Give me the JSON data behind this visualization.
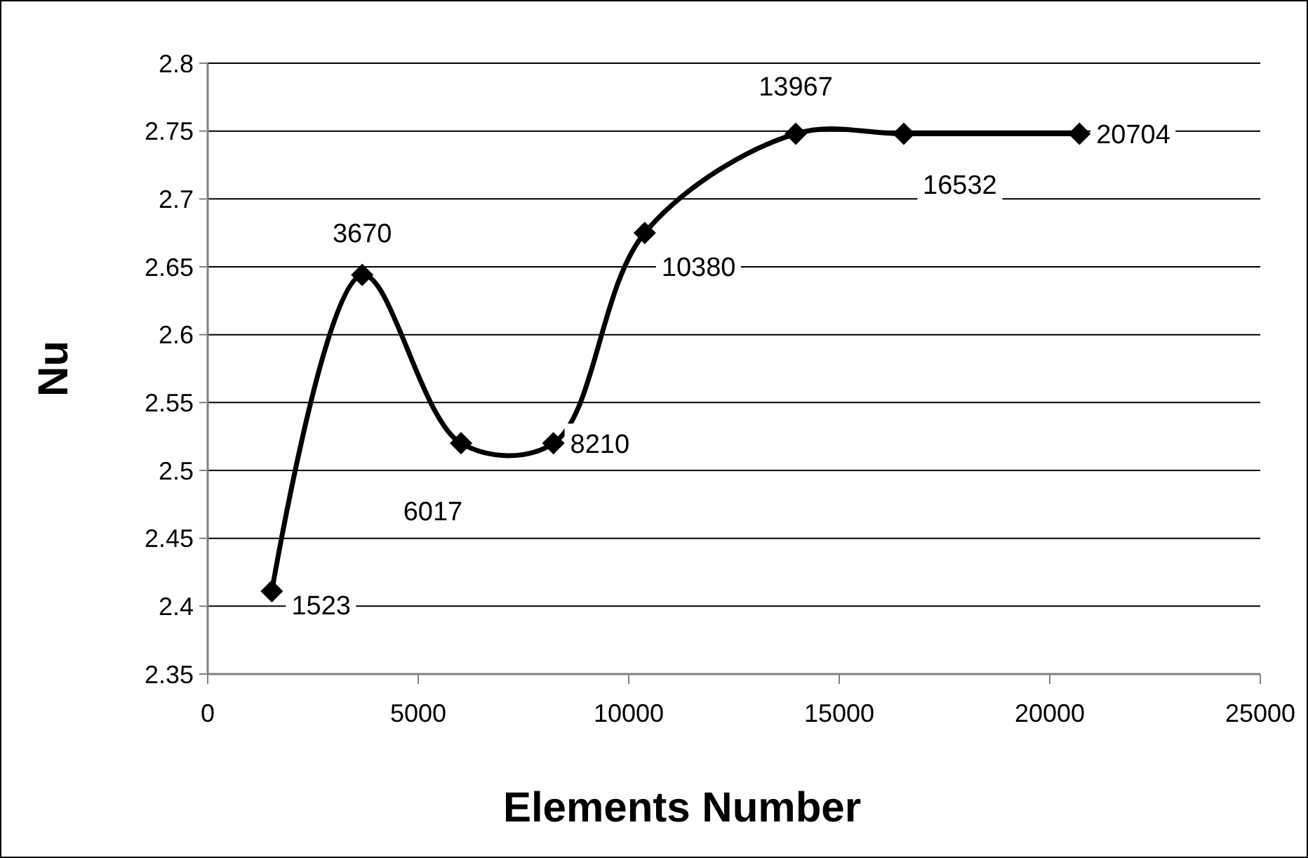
{
  "chart_data": {
    "type": "line",
    "xlabel": "Elements Number",
    "ylabel": "Nu",
    "x": [
      1523,
      3670,
      6017,
      8210,
      10380,
      13967,
      16532,
      20704
    ],
    "series": [
      {
        "color": "#000000",
        "values": [
          2.411,
          2.644,
          2.52,
          2.52,
          2.675,
          2.748,
          2.748,
          2.748
        ]
      }
    ],
    "value_labels": [
      "1523",
      "3670",
      "6017",
      "8210",
      "10380",
      "13967",
      "16532",
      "20704"
    ],
    "xlim": [
      0,
      25000
    ],
    "xticks": [
      0,
      5000,
      10000,
      15000,
      20000,
      25000
    ],
    "ylim": [
      2.35,
      2.8
    ],
    "yticks": [
      2.35,
      2.4,
      2.45,
      2.5,
      2.55,
      2.6,
      2.65,
      2.7,
      2.75,
      2.8
    ],
    "grid": "y",
    "marker": "diamond",
    "line_style": "solid"
  }
}
